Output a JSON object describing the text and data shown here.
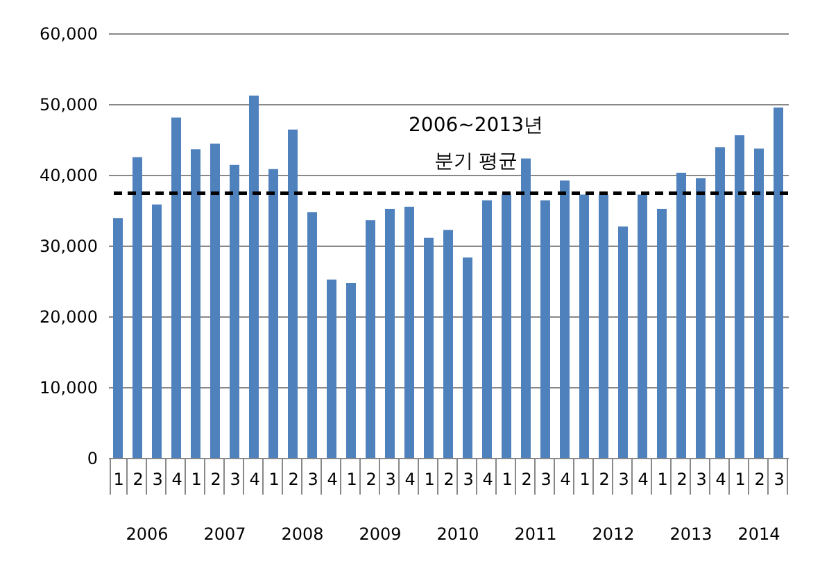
{
  "chart_data": {
    "type": "bar",
    "categories": [
      "1",
      "2",
      "3",
      "4",
      "1",
      "2",
      "3",
      "4",
      "1",
      "2",
      "3",
      "4",
      "1",
      "2",
      "3",
      "4",
      "1",
      "2",
      "3",
      "4",
      "1",
      "2",
      "3",
      "4",
      "1",
      "2",
      "3",
      "4",
      "1",
      "2",
      "3",
      "4",
      "1",
      "2",
      "3"
    ],
    "values": [
      33900,
      42500,
      35800,
      48100,
      43600,
      44400,
      41400,
      51200,
      40800,
      46400,
      34700,
      25200,
      24700,
      33600,
      35200,
      35500,
      31100,
      32200,
      28300,
      36400,
      37200,
      42300,
      36400,
      39200,
      37200,
      37200,
      32700,
      37200,
      35200,
      40300,
      39500,
      43900,
      45600,
      43700,
      49500
    ],
    "color": "#4f81bd",
    "ylim": [
      0,
      60000
    ],
    "yticks": [
      {
        "value": 0,
        "label": "0"
      },
      {
        "value": 10000,
        "label": "10,000"
      },
      {
        "value": 20000,
        "label": "20,000"
      },
      {
        "value": 30000,
        "label": "30,000"
      },
      {
        "value": 40000,
        "label": "40,000"
      },
      {
        "value": 50000,
        "label": "50,000"
      },
      {
        "value": 60000,
        "label": "60,000"
      }
    ],
    "grid": "y",
    "ref_lines": [
      {
        "axis": "y",
        "value": 37400,
        "color": "#000000",
        "line_style": "dashed",
        "label": "2006~2013년\n분기 평균"
      }
    ],
    "annotations": [
      "2006",
      "2007",
      "2008",
      "2009",
      "2010",
      "2011",
      "2012",
      "2013",
      "2014"
    ]
  }
}
